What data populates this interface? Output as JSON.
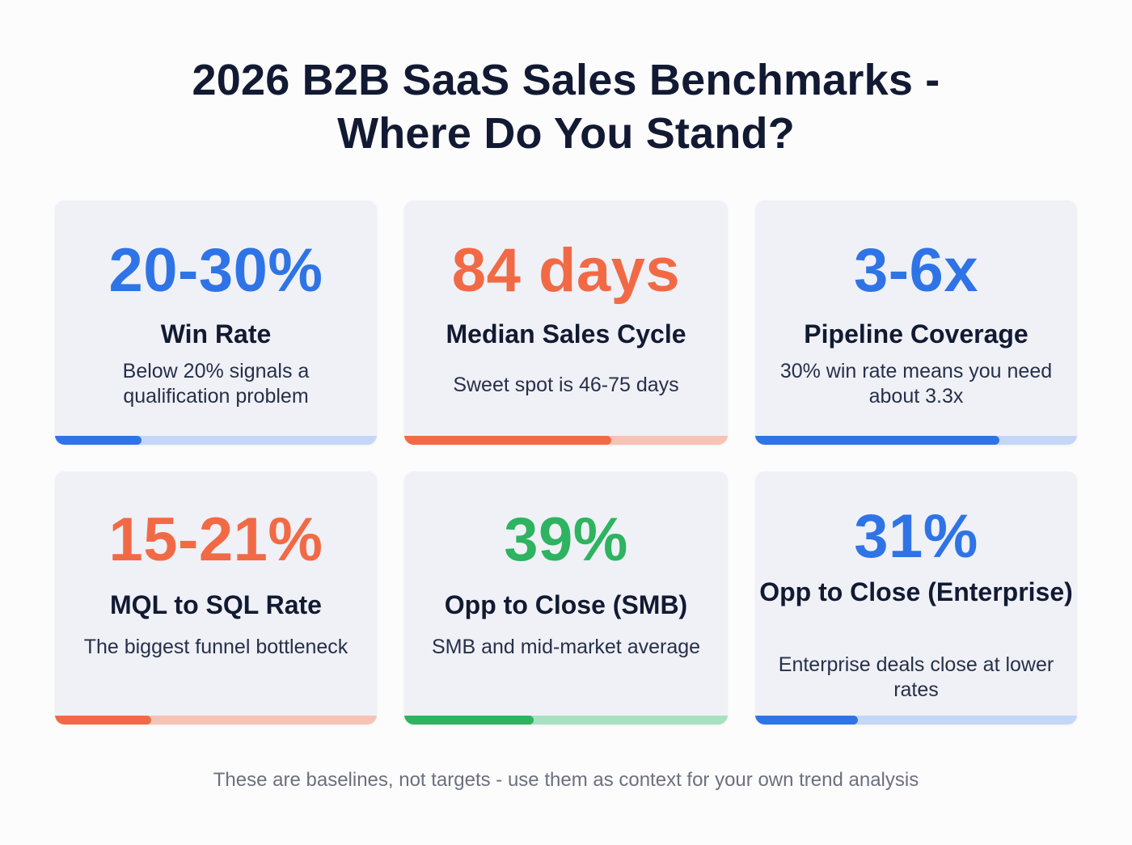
{
  "header": {
    "title_line1": "2026 B2B SaaS Sales Benchmarks -",
    "title_line2": "Where Do You Stand?"
  },
  "colors": {
    "blue": "#2f74e6",
    "blue_track": "#c5d7f6",
    "orange": "#f26a45",
    "orange_track": "#f6c3b4",
    "green": "#2eb360",
    "green_track": "#a9e0c0",
    "heading": "#121a33",
    "card_bg": "#eff1f6",
    "footnote": "#6b7080"
  },
  "cards": [
    {
      "metric": "20-30%",
      "label": "Win Rate",
      "description": "Below 20% signals a qualification problem",
      "accent": "blue",
      "bar_fill_pct": 27
    },
    {
      "metric": "84 days",
      "label": "Median Sales Cycle",
      "description": "Sweet spot is 46-75 days",
      "accent": "orange",
      "bar_fill_pct": 64
    },
    {
      "metric": "3-6x",
      "label": "Pipeline Coverage",
      "description": "30% win rate means you need about 3.3x",
      "accent": "blue",
      "bar_fill_pct": 76
    },
    {
      "metric": "15-21%",
      "label": "MQL to SQL Rate",
      "description": "The biggest funnel bottleneck",
      "accent": "orange",
      "bar_fill_pct": 30
    },
    {
      "metric": "39%",
      "label": "Opp to Close (SMB)",
      "description": "SMB and mid-market average",
      "accent": "green",
      "bar_fill_pct": 40
    },
    {
      "metric": "31%",
      "label": "Opp to Close (Enterprise)",
      "description": "Enterprise deals close at lower rates",
      "accent": "blue",
      "bar_fill_pct": 32
    }
  ],
  "footnote": "These are baselines, not targets - use them as context for your own trend analysis"
}
